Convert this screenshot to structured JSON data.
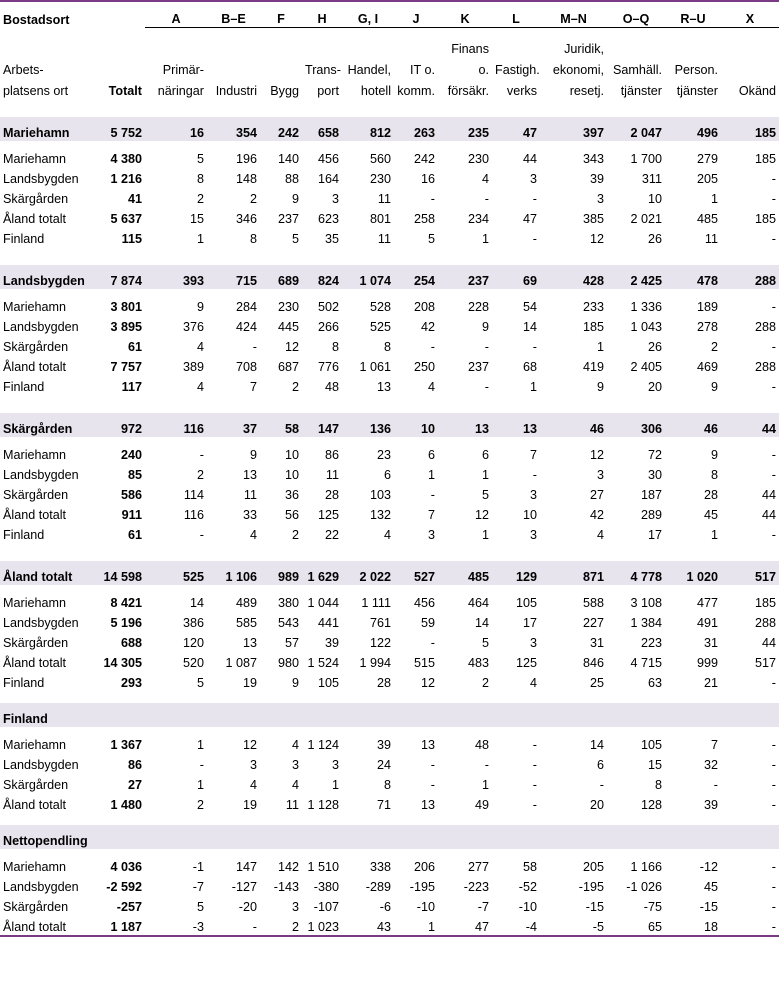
{
  "header": {
    "bostadsort": "Bostadsort",
    "codes": [
      "A",
      "B–E",
      "F",
      "H",
      "G, I",
      "J",
      "K",
      "L",
      "M–N",
      "O–Q",
      "R–U",
      "X"
    ],
    "line1": [
      "",
      "",
      "",
      "",
      "",
      "",
      "",
      "",
      "Finans",
      "",
      "Juridik,",
      "",
      "",
      ""
    ],
    "line2": [
      "Arbets-",
      "",
      "Primär-",
      "",
      "",
      "Trans-",
      "Handel,",
      "IT o.",
      "o.",
      "Fastigh.-",
      "ekonomi,",
      "Samhäll.",
      "Person.",
      ""
    ],
    "line3": [
      "platsens ort",
      "Totalt",
      "näringar",
      "Industri",
      "Bygg",
      "port",
      "hotell",
      "komm.",
      "försäkr.",
      "verks",
      "resetj.",
      "tjänster",
      "tjänster",
      "Okänd"
    ]
  },
  "sections": [
    {
      "label": "Mariehamn",
      "values": [
        "5 752",
        "16",
        "354",
        "242",
        "658",
        "812",
        "263",
        "235",
        "47",
        "397",
        "2 047",
        "496",
        "185"
      ],
      "rows": [
        {
          "label": "Mariehamn",
          "values": [
            "4 380",
            "5",
            "196",
            "140",
            "456",
            "560",
            "242",
            "230",
            "44",
            "343",
            "1 700",
            "279",
            "185"
          ]
        },
        {
          "label": "Landsbygden",
          "values": [
            "1 216",
            "8",
            "148",
            "88",
            "164",
            "230",
            "16",
            "4",
            "3",
            "39",
            "311",
            "205",
            "-"
          ]
        },
        {
          "label": "Skärgården",
          "values": [
            "41",
            "2",
            "2",
            "9",
            "3",
            "11",
            "-",
            "-",
            "-",
            "3",
            "10",
            "1",
            "-"
          ]
        },
        {
          "label": "Åland totalt",
          "values": [
            "5 637",
            "15",
            "346",
            "237",
            "623",
            "801",
            "258",
            "234",
            "47",
            "385",
            "2 021",
            "485",
            "185"
          ]
        },
        {
          "label": "Finland",
          "values": [
            "115",
            "1",
            "8",
            "5",
            "35",
            "11",
            "5",
            "1",
            "-",
            "12",
            "26",
            "11",
            "-"
          ]
        }
      ]
    },
    {
      "label": "Landsbygden",
      "values": [
        "7 874",
        "393",
        "715",
        "689",
        "824",
        "1 074",
        "254",
        "237",
        "69",
        "428",
        "2 425",
        "478",
        "288"
      ],
      "rows": [
        {
          "label": "Mariehamn",
          "values": [
            "3 801",
            "9",
            "284",
            "230",
            "502",
            "528",
            "208",
            "228",
            "54",
            "233",
            "1 336",
            "189",
            "-"
          ]
        },
        {
          "label": "Landsbygden",
          "values": [
            "3 895",
            "376",
            "424",
            "445",
            "266",
            "525",
            "42",
            "9",
            "14",
            "185",
            "1 043",
            "278",
            "288"
          ]
        },
        {
          "label": "Skärgården",
          "values": [
            "61",
            "4",
            "-",
            "12",
            "8",
            "8",
            "-",
            "-",
            "-",
            "1",
            "26",
            "2",
            "-"
          ]
        },
        {
          "label": "Åland totalt",
          "values": [
            "7 757",
            "389",
            "708",
            "687",
            "776",
            "1 061",
            "250",
            "237",
            "68",
            "419",
            "2 405",
            "469",
            "288"
          ]
        },
        {
          "label": "Finland",
          "values": [
            "117",
            "4",
            "7",
            "2",
            "48",
            "13",
            "4",
            "-",
            "1",
            "9",
            "20",
            "9",
            "-"
          ]
        }
      ]
    },
    {
      "label": "Skärgården",
      "values": [
        "972",
        "116",
        "37",
        "58",
        "147",
        "136",
        "10",
        "13",
        "13",
        "46",
        "306",
        "46",
        "44"
      ],
      "rows": [
        {
          "label": "Mariehamn",
          "values": [
            "240",
            "-",
            "9",
            "10",
            "86",
            "23",
            "6",
            "6",
            "7",
            "12",
            "72",
            "9",
            "-"
          ]
        },
        {
          "label": "Landsbygden",
          "values": [
            "85",
            "2",
            "13",
            "10",
            "11",
            "6",
            "1",
            "1",
            "-",
            "3",
            "30",
            "8",
            "-"
          ]
        },
        {
          "label": "Skärgården",
          "values": [
            "586",
            "114",
            "11",
            "36",
            "28",
            "103",
            "-",
            "5",
            "3",
            "27",
            "187",
            "28",
            "44"
          ]
        },
        {
          "label": "Åland totalt",
          "values": [
            "911",
            "116",
            "33",
            "56",
            "125",
            "132",
            "7",
            "12",
            "10",
            "42",
            "289",
            "45",
            "44"
          ]
        },
        {
          "label": "Finland",
          "values": [
            "61",
            "-",
            "4",
            "2",
            "22",
            "4",
            "3",
            "1",
            "3",
            "4",
            "17",
            "1",
            "-"
          ]
        }
      ]
    },
    {
      "label": "Åland totalt",
      "values": [
        "14 598",
        "525",
        "1 106",
        "989",
        "1 629",
        "2 022",
        "527",
        "485",
        "129",
        "871",
        "4 778",
        "1 020",
        "517"
      ],
      "rows": [
        {
          "label": "Mariehamn",
          "values": [
            "8 421",
            "14",
            "489",
            "380",
            "1 044",
            "1 111",
            "456",
            "464",
            "105",
            "588",
            "3 108",
            "477",
            "185"
          ]
        },
        {
          "label": "Landsbygden",
          "values": [
            "5 196",
            "386",
            "585",
            "543",
            "441",
            "761",
            "59",
            "14",
            "17",
            "227",
            "1 384",
            "491",
            "288"
          ]
        },
        {
          "label": "Skärgården",
          "values": [
            "688",
            "120",
            "13",
            "57",
            "39",
            "122",
            "-",
            "5",
            "3",
            "31",
            "223",
            "31",
            "44"
          ]
        },
        {
          "label": "Åland totalt",
          "values": [
            "14 305",
            "520",
            "1 087",
            "980",
            "1 524",
            "1 994",
            "515",
            "483",
            "125",
            "846",
            "4 715",
            "999",
            "517"
          ]
        },
        {
          "label": "Finland",
          "values": [
            "293",
            "5",
            "19",
            "9",
            "105",
            "28",
            "12",
            "2",
            "4",
            "25",
            "63",
            "21",
            "-"
          ]
        }
      ]
    },
    {
      "label": "Finland",
      "values": [
        "",
        "",
        "",
        "",
        "",
        "",
        "",
        "",
        "",
        "",
        "",
        "",
        ""
      ],
      "rows": [
        {
          "label": "Mariehamn",
          "values": [
            "1 367",
            "1",
            "12",
            "4",
            "1 124",
            "39",
            "13",
            "48",
            "-",
            "14",
            "105",
            "7",
            "-"
          ]
        },
        {
          "label": "Landsbygden",
          "values": [
            "86",
            "-",
            "3",
            "3",
            "3",
            "24",
            "-",
            "-",
            "-",
            "6",
            "15",
            "32",
            "-"
          ]
        },
        {
          "label": "Skärgården",
          "values": [
            "27",
            "1",
            "4",
            "4",
            "1",
            "8",
            "-",
            "1",
            "-",
            "-",
            "8",
            "-",
            "-"
          ]
        },
        {
          "label": "Åland totalt",
          "values": [
            "1 480",
            "2",
            "19",
            "11",
            "1 128",
            "71",
            "13",
            "49",
            "-",
            "20",
            "128",
            "39",
            "-"
          ]
        }
      ]
    },
    {
      "label": "Nettopendling",
      "values": [
        "",
        "",
        "",
        "",
        "",
        "",
        "",
        "",
        "",
        "",
        "",
        "",
        ""
      ],
      "rows": [
        {
          "label": "Mariehamn",
          "values": [
            "4 036",
            "-1",
            "147",
            "142",
            "1 510",
            "338",
            "206",
            "277",
            "58",
            "205",
            "1 166",
            "-12",
            "-"
          ]
        },
        {
          "label": "Landsbygden",
          "values": [
            "-2 592",
            "-7",
            "-127",
            "-143",
            "-380",
            "-289",
            "-195",
            "-223",
            "-52",
            "-195",
            "-1 026",
            "45",
            "-"
          ]
        },
        {
          "label": "Skärgården",
          "values": [
            "-257",
            "5",
            "-20",
            "3",
            "-107",
            "-6",
            "-10",
            "-7",
            "-10",
            "-15",
            "-75",
            "-15",
            "-"
          ]
        },
        {
          "label": "Åland totalt",
          "values": [
            "1 187",
            "-3",
            "-",
            "2",
            "1 023",
            "43",
            "1",
            "47",
            "-4",
            "-5",
            "65",
            "18",
            "-"
          ]
        }
      ]
    }
  ]
}
